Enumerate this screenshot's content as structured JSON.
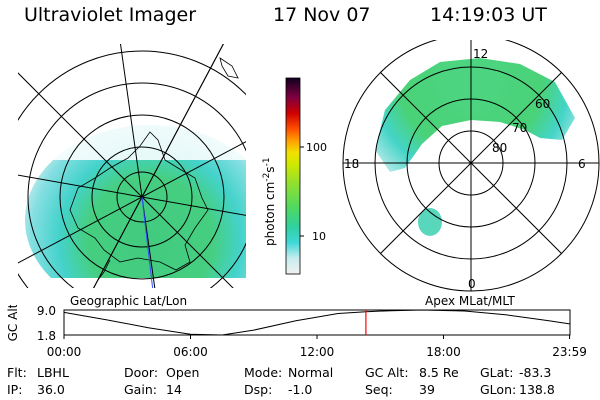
{
  "header": {
    "instrument": "Ultraviolet Imager",
    "date": "17 Nov 07",
    "time": "14:19:03 UT"
  },
  "colors": {
    "background": "#ffffff",
    "grid": "#000000",
    "timeline_marker": "#ff0000",
    "colorbar_stops": [
      "#e8e8e8",
      "#9fe0e6",
      "#30d8d8",
      "#40d080",
      "#78e040",
      "#c8e800",
      "#f0e000",
      "#ffa000",
      "#ff5000",
      "#e00000",
      "#a00040",
      "#300040",
      "#000000"
    ]
  },
  "panels": {
    "left_caption": "Geographic Lat/Lon",
    "right_caption": "Apex MLat/MLT"
  },
  "mlt_labels": {
    "top": "12",
    "left": "18",
    "right": "6",
    "bottom": "0"
  },
  "mlat_labels": [
    "60",
    "70",
    "80"
  ],
  "colorbar": {
    "label": "photon cm",
    "label_sup1": "-2",
    "label_mid": "s",
    "label_sup2": "-1",
    "ticks": [
      "100",
      "10"
    ]
  },
  "chart_data": {
    "type": "line",
    "title": "",
    "ylabel": "GC Alt",
    "y_ticks": [
      "9.0",
      "1.8"
    ],
    "x_ticks": [
      "00:00",
      "06:00",
      "12:00",
      "18:00",
      "23:59"
    ],
    "xlim_hours": [
      0,
      24
    ],
    "ylim": [
      1.8,
      9.0
    ],
    "x_hours": [
      0,
      2,
      4,
      6,
      7.5,
      9,
      11,
      13,
      14.32,
      15.5,
      17,
      19,
      21,
      23,
      23.98
    ],
    "y_values": [
      8.3,
      6.2,
      3.9,
      2.0,
      1.8,
      3.2,
      5.9,
      8.0,
      8.5,
      8.8,
      9.0,
      8.7,
      7.6,
      5.9,
      5.0
    ],
    "current_time_hours": 14.32
  },
  "info_rows": [
    [
      {
        "label": "Flt:",
        "value": "LBHL"
      },
      {
        "label": "Door:",
        "value": "Open"
      },
      {
        "label": "Mode:",
        "value": "Normal"
      },
      {
        "label": "GC Alt:",
        "value": "8.5 Re"
      },
      {
        "label": "GLat:",
        "value": "-83.3"
      }
    ],
    [
      {
        "label": "IP:",
        "value": "36.0"
      },
      {
        "label": "Gain:",
        "value": "14"
      },
      {
        "label": "Dsp:",
        "value": "-1.0"
      },
      {
        "label": "Seq:",
        "value": "39"
      },
      {
        "label": "GLon:",
        "value": "138.8"
      }
    ]
  ]
}
